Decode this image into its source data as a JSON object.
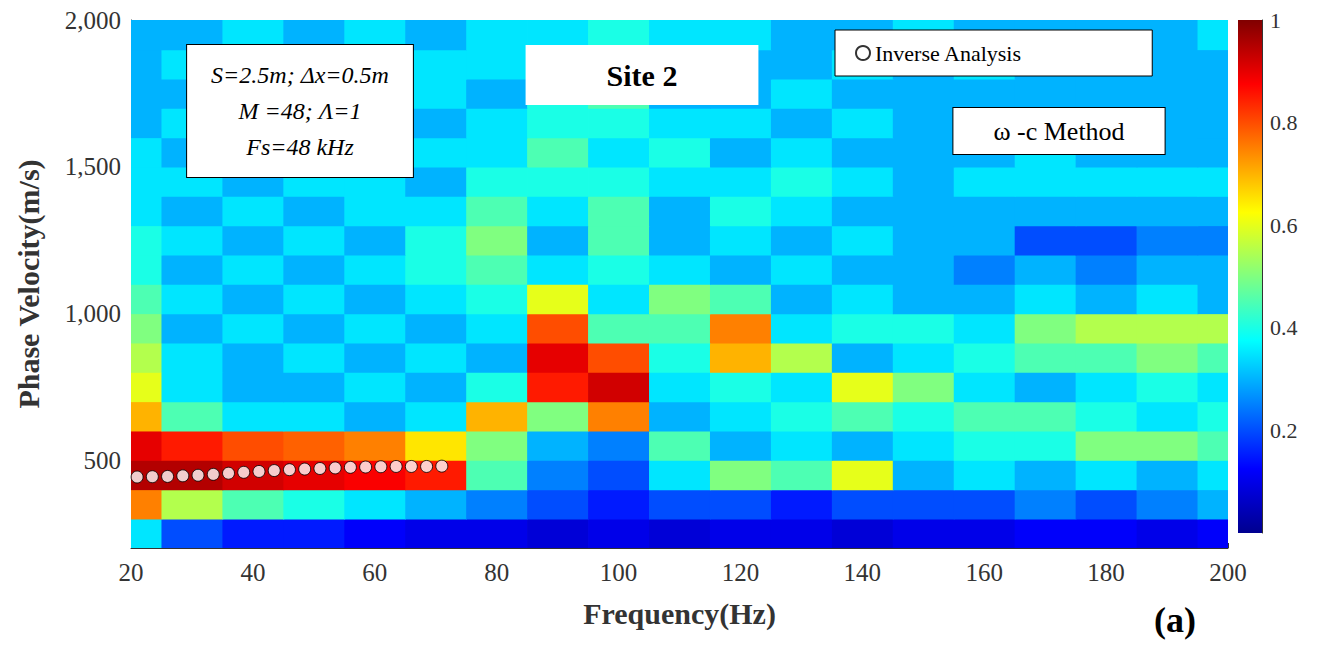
{
  "chart_data": {
    "type": "heatmap",
    "title": "Site 2",
    "x_label": "Frequency(Hz)",
    "y_label": "Phase Velocity(m/s)",
    "xlim": [
      20,
      200
    ],
    "xticks": [
      20,
      40,
      60,
      80,
      100,
      120,
      140,
      160,
      180,
      200
    ],
    "ylim": [
      200,
      2000
    ],
    "yticks": [
      500,
      1000,
      1500,
      2000
    ],
    "grid": false,
    "legend": "upper right",
    "parameters": [
      "S=2.5m; Δx=0.5m",
      "M =48; Λ=1",
      "Fs=48 kHz"
    ],
    "method": "ω -c Method",
    "panel": "(a)",
    "heatmap": {
      "x": [
        20,
        30,
        40,
        50,
        60,
        70,
        80,
        90,
        100,
        110,
        120,
        130,
        140,
        150,
        160,
        170,
        180,
        190,
        200
      ],
      "y": [
        250,
        350,
        450,
        550,
        650,
        750,
        850,
        950,
        1050,
        1150,
        1250,
        1350,
        1450,
        1550,
        1650,
        1750,
        1850,
        1950
      ],
      "values": [
        [
          0.35,
          0.2,
          0.15,
          0.15,
          0.12,
          0.1,
          0.1,
          0.08,
          0.1,
          0.08,
          0.1,
          0.1,
          0.08,
          0.1,
          0.1,
          0.12,
          0.12,
          0.1,
          0.12
        ],
        [
          0.75,
          0.55,
          0.45,
          0.4,
          0.35,
          0.3,
          0.25,
          0.2,
          0.15,
          0.2,
          0.2,
          0.15,
          0.2,
          0.2,
          0.2,
          0.25,
          0.2,
          0.25,
          0.3
        ],
        [
          0.95,
          0.95,
          0.92,
          0.9,
          0.88,
          0.85,
          0.45,
          0.25,
          0.2,
          0.35,
          0.5,
          0.45,
          0.6,
          0.3,
          0.35,
          0.3,
          0.35,
          0.3,
          0.35
        ],
        [
          0.9,
          0.85,
          0.8,
          0.78,
          0.75,
          0.65,
          0.5,
          0.3,
          0.25,
          0.45,
          0.3,
          0.35,
          0.3,
          0.35,
          0.4,
          0.4,
          0.5,
          0.5,
          0.45
        ],
        [
          0.7,
          0.45,
          0.35,
          0.35,
          0.3,
          0.35,
          0.7,
          0.5,
          0.75,
          0.3,
          0.35,
          0.4,
          0.45,
          0.4,
          0.45,
          0.45,
          0.4,
          0.35,
          0.4
        ],
        [
          0.6,
          0.35,
          0.3,
          0.3,
          0.35,
          0.3,
          0.4,
          0.85,
          0.92,
          0.35,
          0.4,
          0.35,
          0.6,
          0.5,
          0.35,
          0.3,
          0.35,
          0.4,
          0.35
        ],
        [
          0.55,
          0.35,
          0.3,
          0.35,
          0.3,
          0.35,
          0.3,
          0.9,
          0.8,
          0.4,
          0.7,
          0.55,
          0.3,
          0.35,
          0.4,
          0.45,
          0.45,
          0.5,
          0.45
        ],
        [
          0.5,
          0.3,
          0.35,
          0.3,
          0.35,
          0.3,
          0.35,
          0.8,
          0.45,
          0.45,
          0.75,
          0.35,
          0.4,
          0.4,
          0.35,
          0.5,
          0.55,
          0.55,
          0.55
        ],
        [
          0.45,
          0.35,
          0.3,
          0.35,
          0.3,
          0.35,
          0.4,
          0.6,
          0.35,
          0.5,
          0.45,
          0.3,
          0.35,
          0.3,
          0.3,
          0.35,
          0.3,
          0.35,
          0.3
        ],
        [
          0.4,
          0.3,
          0.35,
          0.3,
          0.35,
          0.4,
          0.45,
          0.35,
          0.4,
          0.35,
          0.3,
          0.35,
          0.3,
          0.3,
          0.25,
          0.3,
          0.25,
          0.3,
          0.3
        ],
        [
          0.4,
          0.35,
          0.3,
          0.35,
          0.3,
          0.4,
          0.5,
          0.3,
          0.45,
          0.3,
          0.35,
          0.3,
          0.35,
          0.3,
          0.3,
          0.2,
          0.2,
          0.25,
          0.25
        ],
        [
          0.35,
          0.3,
          0.35,
          0.3,
          0.35,
          0.35,
          0.45,
          0.35,
          0.45,
          0.3,
          0.4,
          0.35,
          0.3,
          0.3,
          0.3,
          0.3,
          0.3,
          0.3,
          0.3
        ],
        [
          0.35,
          0.35,
          0.3,
          0.35,
          0.35,
          0.3,
          0.4,
          0.4,
          0.4,
          0.35,
          0.35,
          0.4,
          0.35,
          0.3,
          0.35,
          0.35,
          0.35,
          0.35,
          0.35
        ],
        [
          0.35,
          0.3,
          0.35,
          0.35,
          0.3,
          0.35,
          0.35,
          0.45,
          0.35,
          0.4,
          0.3,
          0.35,
          0.3,
          0.3,
          0.3,
          0.35,
          0.3,
          0.3,
          0.3
        ],
        [
          0.3,
          0.35,
          0.3,
          0.35,
          0.35,
          0.3,
          0.35,
          0.4,
          0.4,
          0.35,
          0.35,
          0.3,
          0.35,
          0.3,
          0.3,
          0.3,
          0.3,
          0.3,
          0.3
        ],
        [
          0.3,
          0.3,
          0.35,
          0.3,
          0.35,
          0.35,
          0.3,
          0.4,
          0.45,
          0.3,
          0.3,
          0.35,
          0.3,
          0.3,
          0.3,
          0.3,
          0.3,
          0.3,
          0.3
        ],
        [
          0.3,
          0.35,
          0.3,
          0.35,
          0.3,
          0.35,
          0.35,
          0.35,
          0.4,
          0.35,
          0.3,
          0.3,
          0.35,
          0.3,
          0.35,
          0.3,
          0.3,
          0.3,
          0.3
        ],
        [
          0.3,
          0.3,
          0.35,
          0.3,
          0.35,
          0.3,
          0.35,
          0.35,
          0.4,
          0.35,
          0.35,
          0.3,
          0.3,
          0.35,
          0.3,
          0.3,
          0.3,
          0.3,
          0.35
        ]
      ]
    },
    "colorbar": {
      "range": [
        0,
        1
      ],
      "ticks": [
        0.2,
        0.4,
        0.6,
        0.8,
        1
      ]
    },
    "series": [
      {
        "name": "Inverse Analysis",
        "type": "scatter",
        "marker": "circle",
        "color": "#ffffff",
        "x": [
          21,
          23.5,
          26,
          28.5,
          31,
          33.5,
          36,
          38.5,
          41,
          43.5,
          46,
          48.5,
          51,
          53.5,
          56,
          58.5,
          61,
          63.5,
          66,
          68.5,
          71
        ],
        "values": [
          442,
          443,
          444,
          446,
          448,
          451,
          455,
          458,
          461,
          464,
          467,
          469,
          471,
          473,
          475,
          476,
          477,
          478,
          478,
          478,
          479
        ]
      }
    ]
  }
}
